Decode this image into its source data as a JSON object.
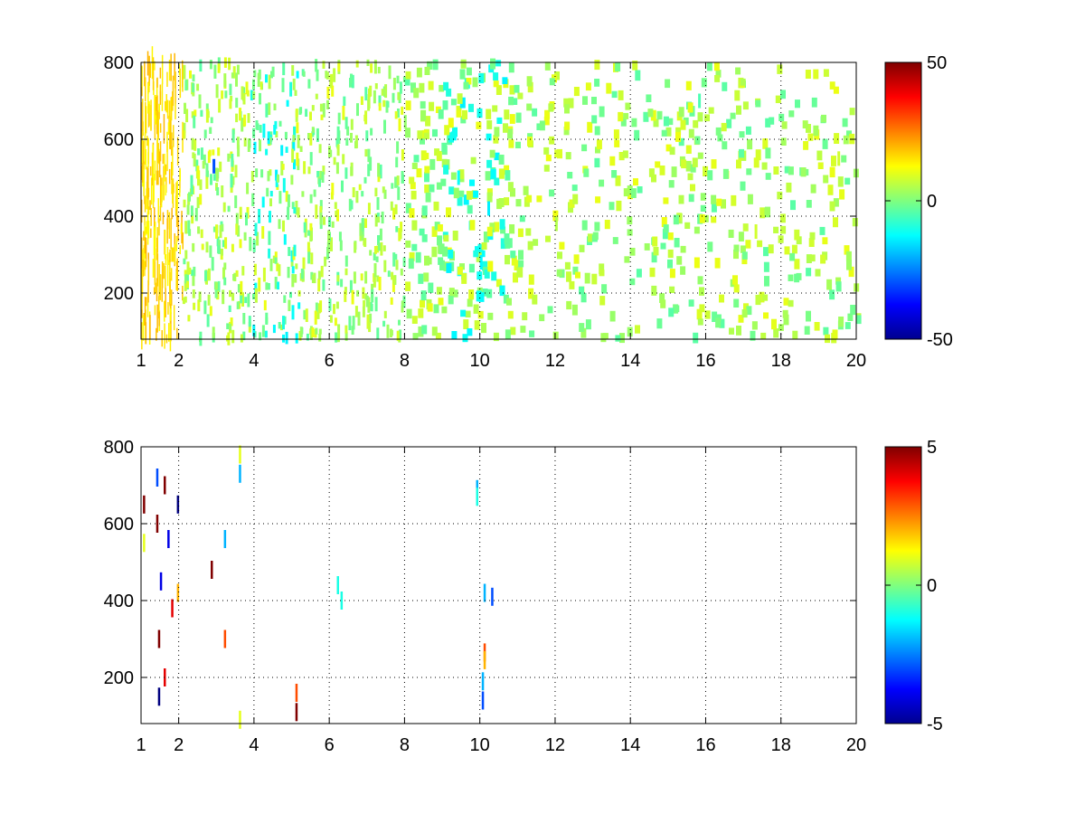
{
  "figure": {
    "background": "#ffffff",
    "colormap": "jet",
    "colormap_stops": [
      "#00008f",
      "#0000ff",
      "#00ffff",
      "#7fff7f",
      "#ffff00",
      "#ff0000",
      "#800000"
    ]
  },
  "chart_data": [
    {
      "type": "heatmap",
      "title": "",
      "xlabel": "",
      "ylabel": "",
      "xlim": [
        1,
        20
      ],
      "ylim": [
        80,
        800
      ],
      "x_ticks": [
        1,
        2,
        4,
        6,
        8,
        10,
        12,
        14,
        16,
        18,
        20
      ],
      "x_tick_labels": [
        "1",
        "2",
        "4",
        "6",
        "8",
        "10",
        "12",
        "14",
        "16",
        "18",
        "20"
      ],
      "y_ticks": [
        200,
        400,
        600,
        800
      ],
      "y_tick_labels": [
        "200",
        "400",
        "600",
        "800"
      ],
      "grid": true,
      "background": "white (NaN cells)",
      "colorbar": {
        "clim": [
          -50,
          50
        ],
        "ticks": [
          -50,
          0,
          50
        ],
        "tick_labels": [
          "-50",
          "0",
          "50"
        ],
        "placement": "right"
      },
      "value_summary": "dense scattered cells near 0 to +10 across all x; strongest fill near x=1-2; cyan (about -10) cells near x=4-5 and x=9-10.5; sparser beyond x=11",
      "sample_cells": [
        {
          "x": 1.4,
          "y": 500,
          "value": 18
        },
        {
          "x": 1.8,
          "y": 300,
          "value": 15
        },
        {
          "x": 2.9,
          "y": 530,
          "value": -30
        },
        {
          "x": 4.1,
          "y": 400,
          "value": -10
        },
        {
          "x": 5.0,
          "y": 150,
          "value": -12
        },
        {
          "x": 9.4,
          "y": 500,
          "value": -12
        },
        {
          "x": 10.2,
          "y": 420,
          "value": -14
        },
        {
          "x": 10.0,
          "y": 280,
          "value": -13
        },
        {
          "x": 12.0,
          "y": 380,
          "value": 5
        },
        {
          "x": 15.8,
          "y": 700,
          "value": -5
        },
        {
          "x": 17.3,
          "y": 360,
          "value": 8
        },
        {
          "x": 19.5,
          "y": 550,
          "value": 8
        }
      ]
    },
    {
      "type": "heatmap",
      "title": "",
      "xlabel": "",
      "ylabel": "",
      "xlim": [
        1,
        20
      ],
      "ylim": [
        80,
        800
      ],
      "x_ticks": [
        1,
        2,
        4,
        6,
        8,
        10,
        12,
        14,
        16,
        18,
        20
      ],
      "x_tick_labels": [
        "1",
        "2",
        "4",
        "6",
        "8",
        "10",
        "12",
        "14",
        "16",
        "18",
        "20"
      ],
      "y_ticks": [
        200,
        400,
        600,
        800
      ],
      "y_tick_labels": [
        "200",
        "400",
        "600",
        "800"
      ],
      "grid": true,
      "background": "white (NaN cells)",
      "colorbar": {
        "clim": [
          -5,
          5
        ],
        "ticks": [
          -5,
          0,
          5
        ],
        "tick_labels": [
          "-5",
          "0",
          "5"
        ],
        "placement": "right"
      },
      "value_summary": "mostly empty; thin vertical streaks of extreme values near x=1.3-2; small clusters near x=2.8, 3.1, 5.1, 6.2 and 10.1",
      "cells": [
        {
          "x": 1.05,
          "y": 650,
          "value": 5
        },
        {
          "x": 1.05,
          "y": 550,
          "value": 1
        },
        {
          "x": 1.4,
          "y": 720,
          "value": -3
        },
        {
          "x": 1.4,
          "y": 600,
          "value": 5
        },
        {
          "x": 1.45,
          "y": 300,
          "value": 5
        },
        {
          "x": 1.45,
          "y": 150,
          "value": -5
        },
        {
          "x": 1.5,
          "y": 450,
          "value": -4
        },
        {
          "x": 1.6,
          "y": 700,
          "value": 5
        },
        {
          "x": 1.6,
          "y": 200,
          "value": 4
        },
        {
          "x": 1.7,
          "y": 560,
          "value": -4
        },
        {
          "x": 1.8,
          "y": 380,
          "value": 4
        },
        {
          "x": 1.95,
          "y": 650,
          "value": -5
        },
        {
          "x": 1.95,
          "y": 420,
          "value": 2
        },
        {
          "x": 2.85,
          "y": 480,
          "value": 5
        },
        {
          "x": 3.2,
          "y": 560,
          "value": -2
        },
        {
          "x": 3.2,
          "y": 300,
          "value": 3
        },
        {
          "x": 3.6,
          "y": 780,
          "value": 1
        },
        {
          "x": 3.6,
          "y": 730,
          "value": -2
        },
        {
          "x": 3.6,
          "y": 90,
          "value": 1
        },
        {
          "x": 5.1,
          "y": 160,
          "value": 3
        },
        {
          "x": 5.1,
          "y": 110,
          "value": 5
        },
        {
          "x": 6.2,
          "y": 440,
          "value": -1
        },
        {
          "x": 6.3,
          "y": 400,
          "value": -1
        },
        {
          "x": 9.9,
          "y": 690,
          "value": -2
        },
        {
          "x": 9.9,
          "y": 670,
          "value": -1
        },
        {
          "x": 10.1,
          "y": 420,
          "value": -2
        },
        {
          "x": 10.3,
          "y": 410,
          "value": -3
        },
        {
          "x": 10.1,
          "y": 265,
          "value": 3
        },
        {
          "x": 10.1,
          "y": 245,
          "value": 2
        },
        {
          "x": 10.05,
          "y": 190,
          "value": -2
        },
        {
          "x": 10.05,
          "y": 140,
          "value": -3
        }
      ]
    }
  ]
}
